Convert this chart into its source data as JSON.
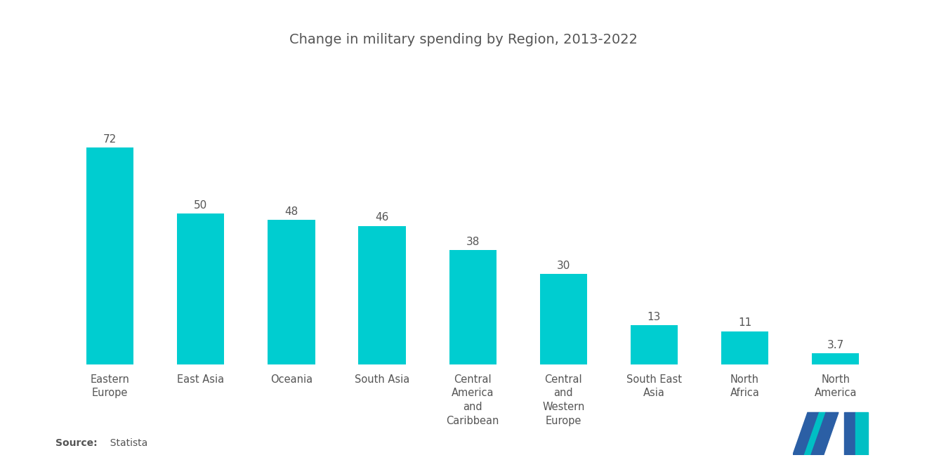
{
  "title": "Change in military spending by Region, 2013-2022",
  "categories": [
    "Eastern\nEurope",
    "East Asia",
    "Oceania",
    "South Asia",
    "Central\nAmerica\nand\nCaribbean",
    "Central\nand\nWestern\nEurope",
    "South East\nAsia",
    "North\nAfrica",
    "North\nAmerica"
  ],
  "values": [
    72,
    50,
    48,
    46,
    38,
    30,
    13,
    11,
    3.7
  ],
  "bar_color": "#00CDD0",
  "background_color": "#ffffff",
  "source_bold": "Source:",
  "source_normal": "  Statista",
  "title_fontsize": 14,
  "label_fontsize": 10.5,
  "value_fontsize": 11,
  "source_fontsize": 10,
  "ylim": [
    0,
    90
  ],
  "logo_blue": "#2B5FA5",
  "logo_teal": "#00BFC4"
}
